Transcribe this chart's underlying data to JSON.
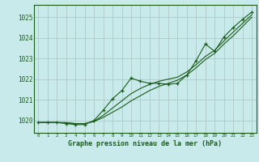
{
  "title": "Graphe pression niveau de la mer (hPa)",
  "bg_color": "#c8eaea",
  "grid_color": "#b0c8c8",
  "line_color": "#1a5c1a",
  "x_ticks": [
    0,
    1,
    2,
    3,
    4,
    5,
    6,
    7,
    8,
    9,
    10,
    11,
    12,
    13,
    14,
    15,
    16,
    17,
    18,
    19,
    20,
    21,
    22,
    23
  ],
  "y_ticks": [
    1020,
    1021,
    1022,
    1023,
    1024,
    1025
  ],
  "ylim": [
    1019.4,
    1025.6
  ],
  "xlim": [
    -0.5,
    23.5
  ],
  "main_data": [
    1019.9,
    1019.9,
    1019.9,
    1019.85,
    1019.8,
    1019.8,
    1020.0,
    1020.5,
    1021.05,
    1021.45,
    1022.05,
    1021.9,
    1021.8,
    1021.8,
    1021.75,
    1021.8,
    1022.2,
    1022.9,
    1023.7,
    1023.35,
    1024.05,
    1024.5,
    1024.9,
    1025.25
  ],
  "line1_data": [
    1019.9,
    1019.9,
    1019.9,
    1019.9,
    1019.85,
    1019.85,
    1019.95,
    1020.15,
    1020.4,
    1020.65,
    1020.95,
    1021.2,
    1021.45,
    1021.65,
    1021.8,
    1021.95,
    1022.2,
    1022.55,
    1022.95,
    1023.25,
    1023.7,
    1024.1,
    1024.55,
    1025.0
  ],
  "line2_data": [
    1019.9,
    1019.9,
    1019.9,
    1019.88,
    1019.84,
    1019.84,
    1019.96,
    1020.25,
    1020.6,
    1020.95,
    1021.3,
    1021.55,
    1021.75,
    1021.9,
    1022.0,
    1022.1,
    1022.35,
    1022.7,
    1023.1,
    1023.4,
    1023.85,
    1024.28,
    1024.7,
    1025.12
  ]
}
